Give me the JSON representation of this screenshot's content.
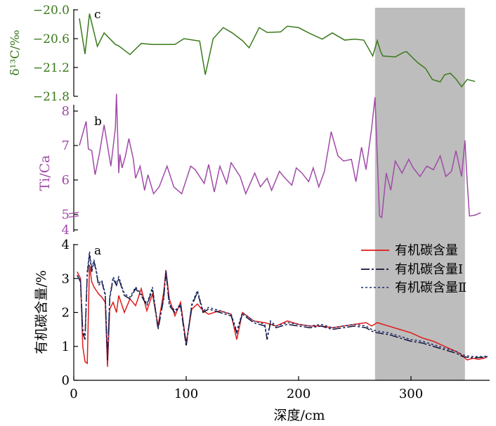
{
  "chart_data": [
    {
      "type": "line",
      "panel_label": "c",
      "ylabel": "δ¹³C/‰",
      "ylim": [
        -21.8,
        -20.0
      ],
      "yticks": [
        "-20.0",
        "-20.6",
        "-21.2",
        "-21.8"
      ],
      "color": "#3a7a1c",
      "series": [
        {
          "x": [
            5,
            10,
            14,
            21,
            27,
            37,
            40,
            50,
            60,
            70,
            80,
            90,
            98,
            112,
            117,
            124,
            133,
            141,
            150,
            156,
            165,
            172,
            184,
            190,
            200,
            209,
            221,
            230,
            241,
            250,
            258,
            266,
            270,
            273,
            275,
            286,
            293,
            296,
            306,
            313,
            319,
            326,
            330,
            335,
            340,
            345,
            350,
            357
          ],
          "y": [
            -20.18,
            -20.92,
            -20.08,
            -20.76,
            -20.48,
            -20.72,
            -20.75,
            -20.93,
            -20.7,
            -20.72,
            -20.72,
            -20.72,
            -20.6,
            -20.65,
            -21.35,
            -20.6,
            -20.37,
            -20.48,
            -20.64,
            -20.79,
            -20.37,
            -20.47,
            -20.46,
            -20.34,
            -20.37,
            -20.48,
            -20.61,
            -20.48,
            -20.63,
            -20.61,
            -20.63,
            -20.96,
            -20.64,
            -20.87,
            -20.96,
            -20.98,
            -20.89,
            -20.87,
            -21.1,
            -21.22,
            -21.45,
            -21.5,
            -21.35,
            -21.32,
            -21.44,
            -21.6,
            -21.45,
            -21.49
          ]
        }
      ]
    },
    {
      "type": "line",
      "panel_label": "b",
      "ylabel": "Ti/Ca",
      "ylim": [
        4,
        8
      ],
      "yticks": [
        "4",
        "5",
        "6",
        "7",
        "8"
      ],
      "axis_break": true,
      "color": "#a04ba8",
      "series": [
        {
          "x": [
            5,
            11,
            13,
            16,
            19,
            23,
            27,
            33,
            37,
            38,
            40,
            41,
            43,
            46,
            49,
            53,
            55,
            59,
            63,
            66,
            71,
            76,
            83,
            89,
            96,
            104,
            108,
            116,
            120,
            125,
            130,
            136,
            140,
            148,
            153,
            161,
            166,
            172,
            176,
            183,
            188,
            194,
            198,
            203,
            209,
            213,
            218,
            223,
            229,
            235,
            240,
            247,
            251,
            256,
            260,
            265,
            268,
            272,
            274,
            278,
            282,
            286,
            292,
            298,
            302,
            308,
            314,
            320,
            326,
            331,
            336,
            340,
            345,
            348,
            350,
            352,
            357,
            362
          ],
          "y": [
            7.0,
            7.7,
            6.9,
            6.85,
            6.15,
            6.8,
            7.6,
            6.4,
            7.5,
            8.5,
            6.2,
            6.75,
            6.35,
            6.7,
            7.2,
            6.6,
            6.05,
            6.4,
            5.7,
            6.15,
            5.6,
            5.8,
            6.4,
            5.8,
            5.6,
            6.4,
            6.3,
            5.9,
            6.45,
            5.65,
            6.4,
            5.9,
            6.5,
            6.1,
            5.6,
            6.2,
            5.8,
            6.05,
            5.7,
            6.25,
            6.05,
            5.85,
            6.35,
            6.2,
            5.95,
            6.35,
            5.8,
            6.25,
            7.4,
            6.7,
            6.55,
            6.6,
            5.95,
            6.95,
            6.3,
            7.5,
            8.4,
            4.9,
            4.8,
            6.2,
            5.7,
            6.55,
            6.2,
            6.6,
            6.35,
            6.1,
            6.4,
            6.3,
            6.7,
            6.1,
            6.25,
            6.85,
            6.1,
            7.15,
            5.95,
            4.9,
            4.95,
            5.05
          ]
        }
      ]
    },
    {
      "type": "line",
      "panel_label": "a",
      "ylabel": "有机碳含量/%",
      "xlabel": "深度/cm",
      "ylim": [
        0,
        4
      ],
      "yticks": [
        "0",
        "1",
        "2",
        "3",
        "4"
      ],
      "xlim": [
        0,
        370
      ],
      "xticks": [
        "0",
        "100",
        "200",
        "300"
      ],
      "legend": "top-right",
      "series": [
        {
          "name": "有机碳含量",
          "color": "#e01a1a",
          "style": "solid",
          "x": [
            3,
            6,
            8,
            10,
            12,
            14,
            16,
            18,
            20,
            22,
            25,
            28,
            30,
            32,
            35,
            38,
            40,
            45,
            50,
            55,
            60,
            65,
            70,
            75,
            80,
            82,
            85,
            90,
            95,
            100,
            105,
            110,
            115,
            120,
            130,
            140,
            145,
            150,
            160,
            170,
            180,
            190,
            200,
            210,
            220,
            230,
            240,
            250,
            260,
            265,
            270,
            280,
            290,
            300,
            310,
            320,
            330,
            340,
            343,
            346,
            350,
            355,
            360,
            365,
            368
          ],
          "y": [
            3.2,
            3.0,
            1.0,
            0.55,
            0.5,
            3.4,
            2.9,
            2.75,
            2.65,
            2.55,
            2.45,
            2.3,
            0.4,
            2.1,
            2.3,
            2.0,
            2.5,
            2.0,
            2.4,
            2.2,
            2.7,
            2.05,
            2.55,
            1.6,
            2.6,
            3.25,
            2.4,
            1.9,
            2.3,
            1.1,
            2.1,
            2.25,
            2.05,
            1.95,
            2.05,
            1.95,
            1.2,
            2.0,
            1.75,
            1.7,
            1.6,
            1.75,
            1.65,
            1.6,
            1.6,
            1.55,
            1.6,
            1.65,
            1.7,
            1.6,
            1.7,
            1.6,
            1.5,
            1.4,
            1.25,
            1.15,
            1.0,
            0.85,
            0.8,
            0.72,
            0.6,
            0.65,
            0.62,
            0.65,
            0.7
          ]
        },
        {
          "name": "有机碳含量Ⅰ",
          "color": "#10123a",
          "style": "dash",
          "x": [
            3,
            6,
            8,
            10,
            12,
            14,
            16,
            18,
            20,
            22,
            25,
            28,
            30,
            32,
            35,
            38,
            40,
            45,
            50,
            55,
            60,
            65,
            70,
            75,
            80,
            82,
            85,
            90,
            95,
            100,
            105,
            110,
            115,
            120,
            130,
            140,
            145,
            150,
            160,
            170,
            172,
            175,
            180,
            190,
            200,
            210,
            220,
            230,
            240,
            250,
            260,
            265,
            270,
            280,
            290,
            300,
            310,
            320,
            330,
            340,
            343,
            346,
            350,
            355,
            360,
            365,
            368
          ],
          "y": [
            3.1,
            2.9,
            1.4,
            1.2,
            3.1,
            3.7,
            3.2,
            3.5,
            3.2,
            2.8,
            2.9,
            2.5,
            0.6,
            2.4,
            3.0,
            2.8,
            3.0,
            2.5,
            2.4,
            2.7,
            2.5,
            2.2,
            2.7,
            1.5,
            2.4,
            3.2,
            2.2,
            2.0,
            2.2,
            1.0,
            2.2,
            2.6,
            2.0,
            2.1,
            2.0,
            1.9,
            1.4,
            1.95,
            1.7,
            1.6,
            1.2,
            1.7,
            1.55,
            1.65,
            1.6,
            1.55,
            1.6,
            1.5,
            1.55,
            1.6,
            1.55,
            1.45,
            1.4,
            1.35,
            1.25,
            1.15,
            1.1,
            1.0,
            0.9,
            0.8,
            0.75,
            0.7,
            0.68,
            0.66,
            0.67,
            0.68,
            0.7
          ]
        },
        {
          "name": "有机碳含量Ⅱ",
          "color": "#1d2f70",
          "style": "dot",
          "x": [
            3,
            6,
            8,
            10,
            12,
            14,
            16,
            18,
            20,
            22,
            25,
            28,
            30,
            32,
            35,
            38,
            40,
            45,
            50,
            55,
            60,
            65,
            70,
            75,
            80,
            82,
            85,
            90,
            95,
            100,
            105,
            110,
            115,
            120,
            130,
            140,
            145,
            150,
            160,
            170,
            172,
            175,
            180,
            190,
            200,
            210,
            220,
            230,
            240,
            250,
            260,
            265,
            270,
            280,
            290,
            300,
            310,
            320,
            330,
            340,
            343,
            346,
            350,
            355,
            360,
            365,
            368
          ],
          "y": [
            3.1,
            2.95,
            1.5,
            1.3,
            3.2,
            3.8,
            3.3,
            3.55,
            3.25,
            2.85,
            2.95,
            2.55,
            0.65,
            2.45,
            3.05,
            2.85,
            3.05,
            2.55,
            2.45,
            2.75,
            2.55,
            2.25,
            2.75,
            1.55,
            2.45,
            3.25,
            2.25,
            2.05,
            2.25,
            1.05,
            2.25,
            2.65,
            2.05,
            2.15,
            2.05,
            1.95,
            1.45,
            2.0,
            1.75,
            1.65,
            1.25,
            1.75,
            1.6,
            1.7,
            1.65,
            1.6,
            1.65,
            1.55,
            1.6,
            1.65,
            1.6,
            1.5,
            1.45,
            1.4,
            1.3,
            1.2,
            1.15,
            1.05,
            0.95,
            0.85,
            0.8,
            0.75,
            0.72,
            0.7,
            0.7,
            0.7,
            0.72
          ]
        }
      ],
      "shaded_band_x": [
        268,
        348
      ],
      "shaded_color": "#bdbdbd"
    }
  ]
}
